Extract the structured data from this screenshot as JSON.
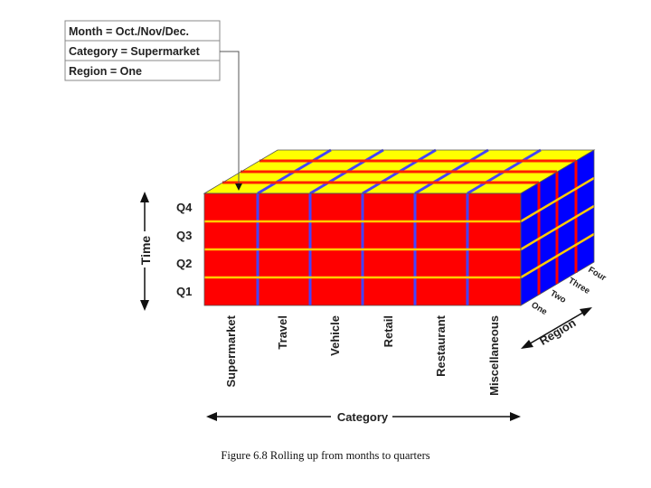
{
  "filter_box": {
    "month": "Month = Oct./Nov/Dec.",
    "category": "Category = Supermarket",
    "region": "Region = One"
  },
  "time_axis": {
    "label": "Time",
    "quarters": [
      "Q4",
      "Q3",
      "Q2",
      "Q1"
    ]
  },
  "category_axis": {
    "label": "Category",
    "items": [
      "Supermarket",
      "Travel",
      "Vehicle",
      "Retail",
      "Restaurant",
      "Miscellaneous"
    ]
  },
  "region_axis": {
    "label": "Region",
    "items": [
      "One",
      "Two",
      "Three",
      "Four"
    ]
  },
  "colors": {
    "front": "#ff0000",
    "top": "#ffff00",
    "side": "#0000ff",
    "divider_front": "#4444ff",
    "divider_top": "#ff2200",
    "divider_side": "#ff0000"
  },
  "caption": "Figure 6.8 Rolling up from months to quarters"
}
